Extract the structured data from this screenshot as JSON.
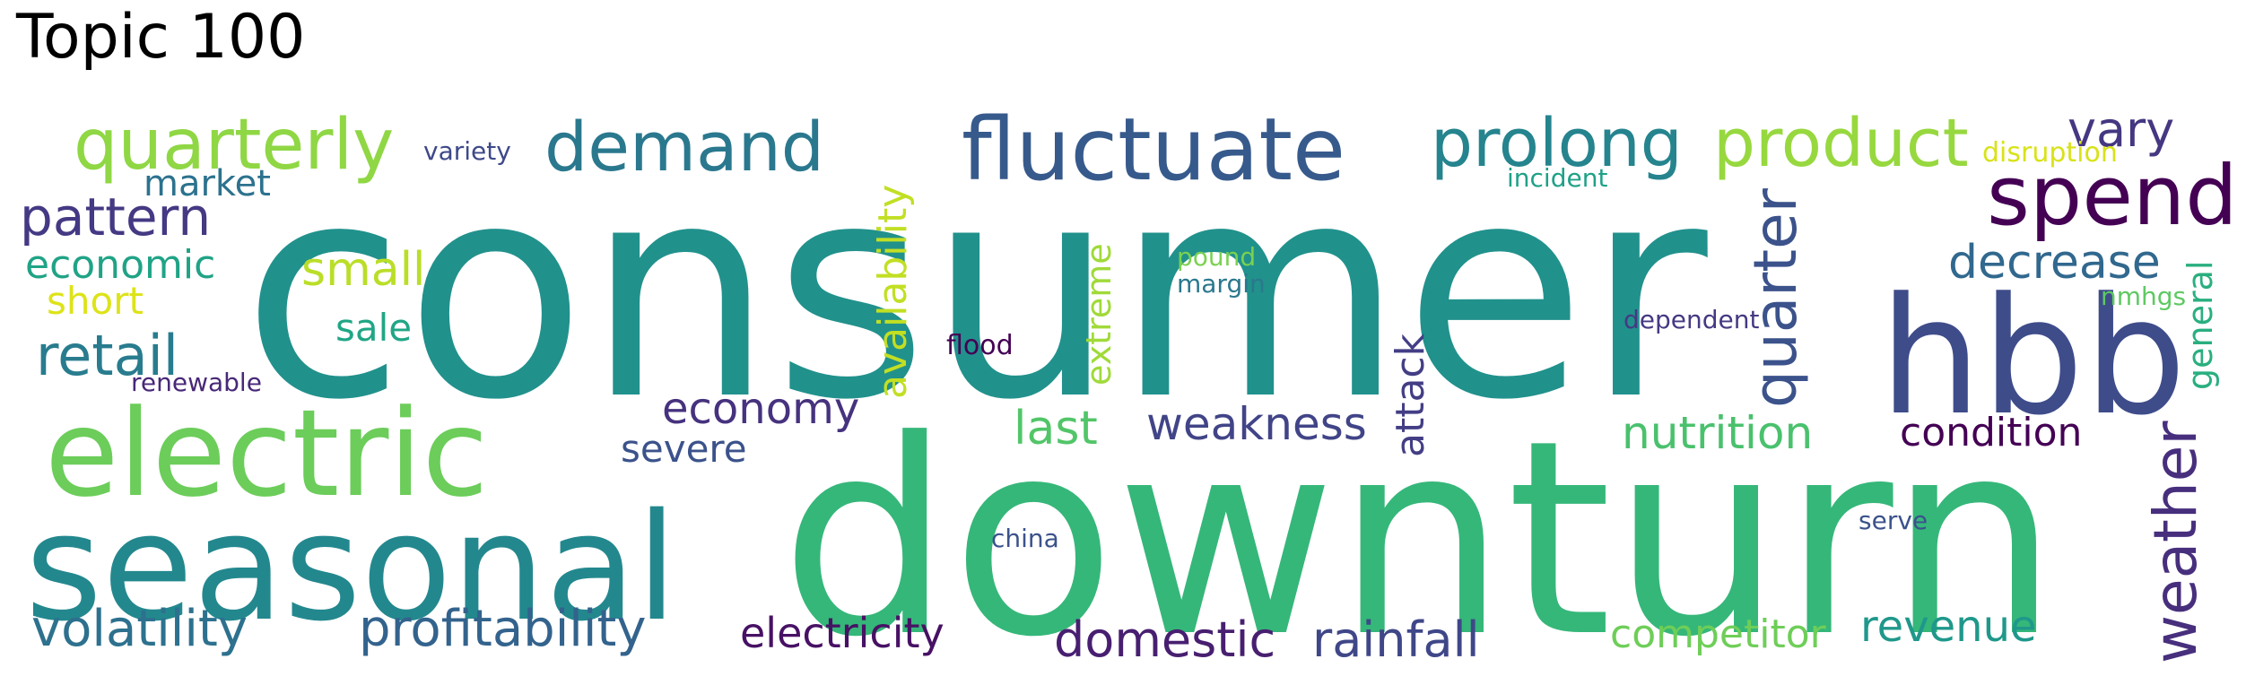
{
  "title": "Topic 100",
  "words": [
    {
      "text": "consumer",
      "color": "#21918c"
    },
    {
      "text": "downturn",
      "color": "#35b779"
    },
    {
      "text": "seasonal",
      "color": "#23888e"
    },
    {
      "text": "electric",
      "color": "#6ccd5a"
    },
    {
      "text": "hbb",
      "color": "#3e4c8a"
    },
    {
      "text": "fluctuate",
      "color": "#375a8c"
    },
    {
      "text": "spend",
      "color": "#440154"
    },
    {
      "text": "quarterly",
      "color": "#8fd744"
    },
    {
      "text": "demand",
      "color": "#2a788e"
    },
    {
      "text": "prolong",
      "color": "#25848e"
    },
    {
      "text": "product",
      "color": "#97d83f"
    },
    {
      "text": "weather",
      "color": "#472f7d"
    },
    {
      "text": "quarter",
      "color": "#3b528b"
    },
    {
      "text": "vary",
      "color": "#453781"
    },
    {
      "text": "pattern",
      "color": "#443983"
    },
    {
      "text": "retail",
      "color": "#287c8e"
    },
    {
      "text": "profitability",
      "color": "#33638d"
    },
    {
      "text": "volatility",
      "color": "#2d718e"
    },
    {
      "text": "domestic",
      "color": "#481f70"
    },
    {
      "text": "rainfall",
      "color": "#3f4788"
    },
    {
      "text": "electricity",
      "color": "#471164"
    },
    {
      "text": "revenue",
      "color": "#1f988b"
    },
    {
      "text": "competitor",
      "color": "#6ece58"
    },
    {
      "text": "nutrition",
      "color": "#4ac16d"
    },
    {
      "text": "condition",
      "color": "#440154"
    },
    {
      "text": "weakness",
      "color": "#414487"
    },
    {
      "text": "last",
      "color": "#52c569"
    },
    {
      "text": "economy",
      "color": "#46327e"
    },
    {
      "text": "decrease",
      "color": "#31688e"
    },
    {
      "text": "small",
      "color": "#bade28"
    },
    {
      "text": "market",
      "color": "#2c728e"
    },
    {
      "text": "economic",
      "color": "#20a386"
    },
    {
      "text": "short",
      "color": "#dde318"
    },
    {
      "text": "sale",
      "color": "#21a685"
    },
    {
      "text": "severe",
      "color": "#3b528b"
    },
    {
      "text": "availability",
      "color": "#c2df23"
    },
    {
      "text": "extreme",
      "color": "#a0da39"
    },
    {
      "text": "attack",
      "color": "#433e85"
    },
    {
      "text": "general",
      "color": "#29af7f"
    },
    {
      "text": "renewable",
      "color": "#482878"
    },
    {
      "text": "variety",
      "color": "#3e4989"
    },
    {
      "text": "flood",
      "color": "#440154"
    },
    {
      "text": "china",
      "color": "#3b528b"
    },
    {
      "text": "pound",
      "color": "#7ad151"
    },
    {
      "text": "margin",
      "color": "#2a788e"
    },
    {
      "text": "incident",
      "color": "#1fa187"
    },
    {
      "text": "dependent",
      "color": "#443a83"
    },
    {
      "text": "disruption",
      "color": "#d8e219"
    },
    {
      "text": "nmhgs",
      "color": "#5ec962"
    },
    {
      "text": "serve",
      "color": "#3b528b"
    }
  ]
}
